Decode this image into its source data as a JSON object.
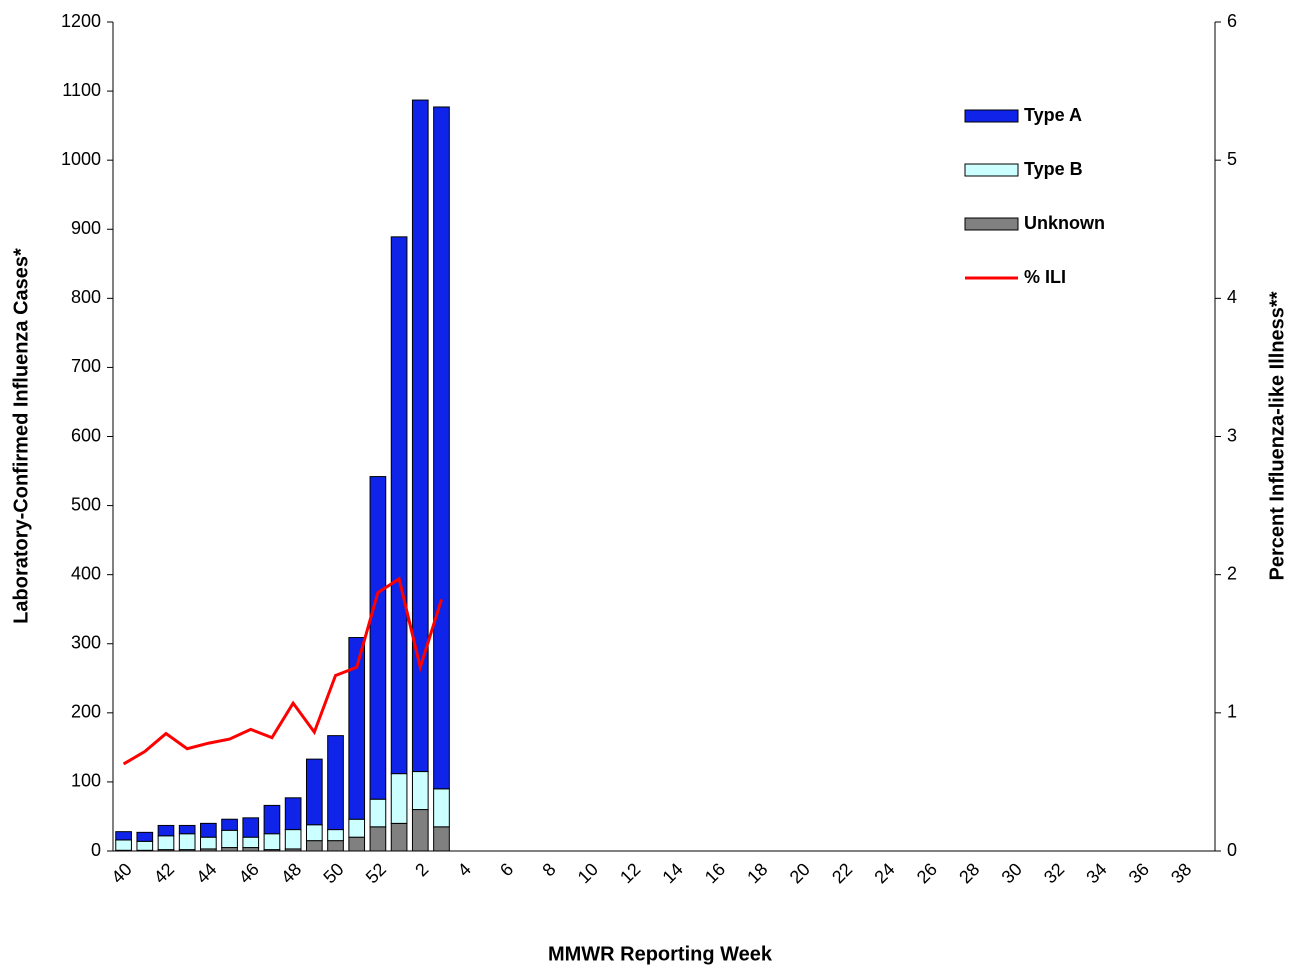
{
  "chart_data": {
    "type": "bar-line",
    "x_label": "MMWR Reporting Week",
    "y_label": "Laboratory-Confirmed Influenza Cases*",
    "y2_label": "Percent Influenza-like Illness**",
    "categories": [
      "40",
      null,
      "42",
      null,
      "44",
      null,
      "46",
      null,
      "48",
      null,
      "50",
      null,
      "52",
      null,
      "2",
      null,
      "4",
      null,
      "6",
      null,
      "8",
      null,
      "10",
      null,
      "12",
      null,
      "14",
      null,
      "16",
      null,
      "18",
      null,
      "20",
      null,
      "22",
      null,
      "24",
      null,
      "26",
      null,
      "28",
      null,
      "30",
      null,
      "32",
      null,
      "34",
      null,
      "36",
      null,
      "38",
      null
    ],
    "series": [
      {
        "name": "Type A",
        "color": "#0f24e8",
        "values": [
          12,
          13,
          15,
          12,
          20,
          16,
          28,
          41,
          46,
          95,
          136,
          263,
          467,
          777,
          972,
          987,
          null,
          null,
          null,
          null,
          null,
          null,
          null,
          null,
          null,
          null,
          null,
          null,
          null,
          null,
          null,
          null,
          null,
          null,
          null,
          null,
          null,
          null,
          null,
          null,
          null,
          null,
          null,
          null,
          null,
          null,
          null,
          null,
          null,
          null,
          null,
          null
        ]
      },
      {
        "name": "Type B",
        "color": "#ccffff",
        "values": [
          15,
          13,
          20,
          23,
          17,
          25,
          15,
          23,
          28,
          23,
          16,
          26,
          40,
          72,
          55,
          55,
          null,
          null,
          null,
          null,
          null,
          null,
          null,
          null,
          null,
          null,
          null,
          null,
          null,
          null,
          null,
          null,
          null,
          null,
          null,
          null,
          null,
          null,
          null,
          null,
          null,
          null,
          null,
          null,
          null,
          null,
          null,
          null,
          null,
          null,
          null,
          null
        ]
      },
      {
        "name": "Unknown",
        "color": "#808080",
        "values": [
          1,
          1,
          2,
          2,
          3,
          5,
          5,
          2,
          3,
          15,
          15,
          20,
          35,
          40,
          60,
          35,
          null,
          null,
          null,
          null,
          null,
          null,
          null,
          null,
          null,
          null,
          null,
          null,
          null,
          null,
          null,
          null,
          null,
          null,
          null,
          null,
          null,
          null,
          null,
          null,
          null,
          null,
          null,
          null,
          null,
          null,
          null,
          null,
          null,
          null,
          null,
          null
        ]
      },
      {
        "name": "% ILI",
        "color": "#ff0000",
        "axis": "y2",
        "values": [
          0.63,
          0.72,
          0.85,
          0.74,
          0.78,
          0.81,
          0.88,
          0.82,
          1.07,
          0.86,
          1.27,
          1.33,
          1.87,
          1.97,
          1.33,
          1.82,
          null,
          null,
          null,
          null,
          null,
          null,
          null,
          null,
          null,
          null,
          null,
          null,
          null,
          null,
          null,
          null,
          null,
          null,
          null,
          null,
          null,
          null,
          null,
          null,
          null,
          null,
          null,
          null,
          null,
          null,
          null,
          null,
          null,
          null,
          null,
          null
        ]
      }
    ],
    "ylim": [
      0,
      1200
    ],
    "yticks": [
      0,
      100,
      200,
      300,
      400,
      500,
      600,
      700,
      800,
      900,
      1000,
      1100,
      1200
    ],
    "y2lim": [
      0,
      6
    ],
    "y2ticks": [
      0,
      1,
      2,
      3,
      4,
      5,
      6
    ],
    "legend": "top-right"
  }
}
